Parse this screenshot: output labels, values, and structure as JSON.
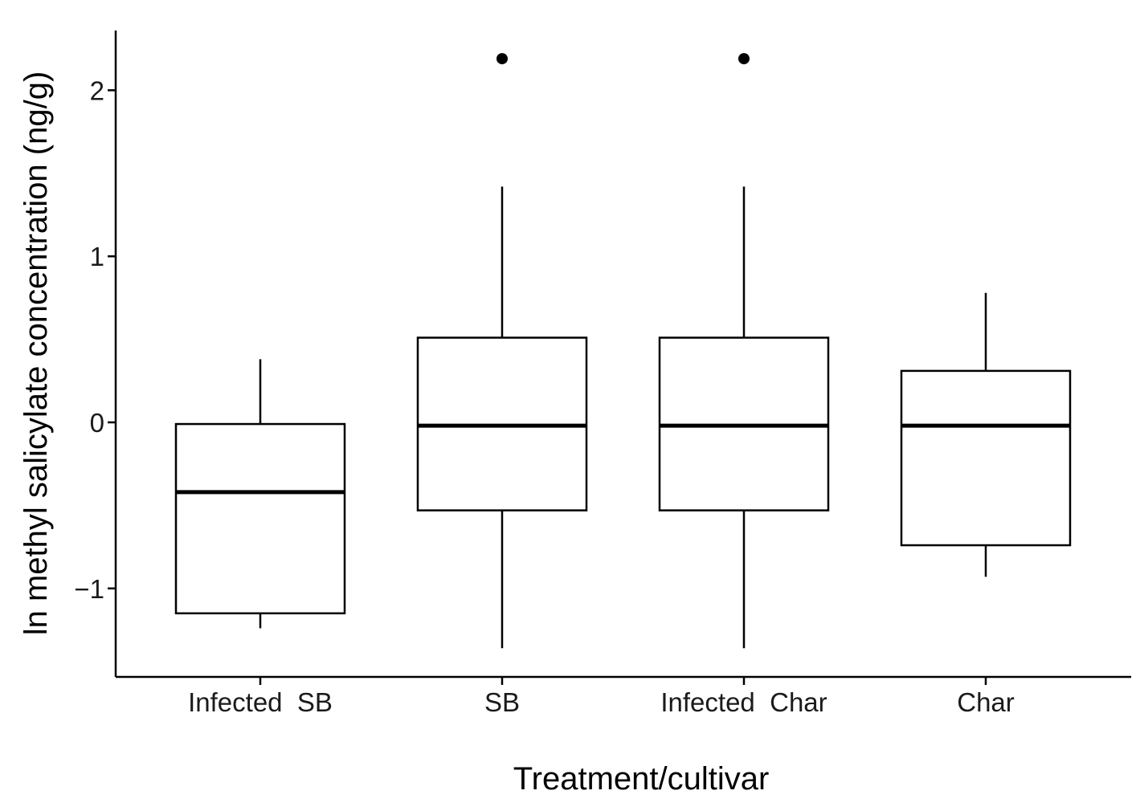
{
  "chart_data": {
    "type": "boxplot",
    "title": "",
    "xlabel": "Treatment/cultivar",
    "ylabel": "ln methyl salicylate concentration (ng/g)",
    "categories": [
      "Infected  SB",
      "SB",
      "Infected  Char",
      "Char"
    ],
    "ylim": [
      -1.5,
      2.35
    ],
    "yticks": [
      -1,
      0,
      1,
      2
    ],
    "ytick_labels": [
      "−1",
      "0",
      "1",
      "2"
    ],
    "grid": false,
    "legend": "none",
    "boxes": [
      {
        "category": "Infected  SB",
        "whisker_low": -1.24,
        "q1": -1.15,
        "median": -0.42,
        "q3": -0.01,
        "whisker_high": 0.38,
        "outliers": []
      },
      {
        "category": "SB",
        "whisker_low": -1.36,
        "q1": -0.53,
        "median": -0.02,
        "q3": 0.51,
        "whisker_high": 1.42,
        "outliers": [
          2.19
        ]
      },
      {
        "category": "Infected  Char",
        "whisker_low": -1.36,
        "q1": -0.53,
        "median": -0.02,
        "q3": 0.51,
        "whisker_high": 1.42,
        "outliers": [
          2.19
        ]
      },
      {
        "category": "Char",
        "whisker_low": -0.93,
        "q1": -0.74,
        "median": -0.02,
        "q3": 0.31,
        "whisker_high": 0.78,
        "outliers": []
      }
    ]
  }
}
